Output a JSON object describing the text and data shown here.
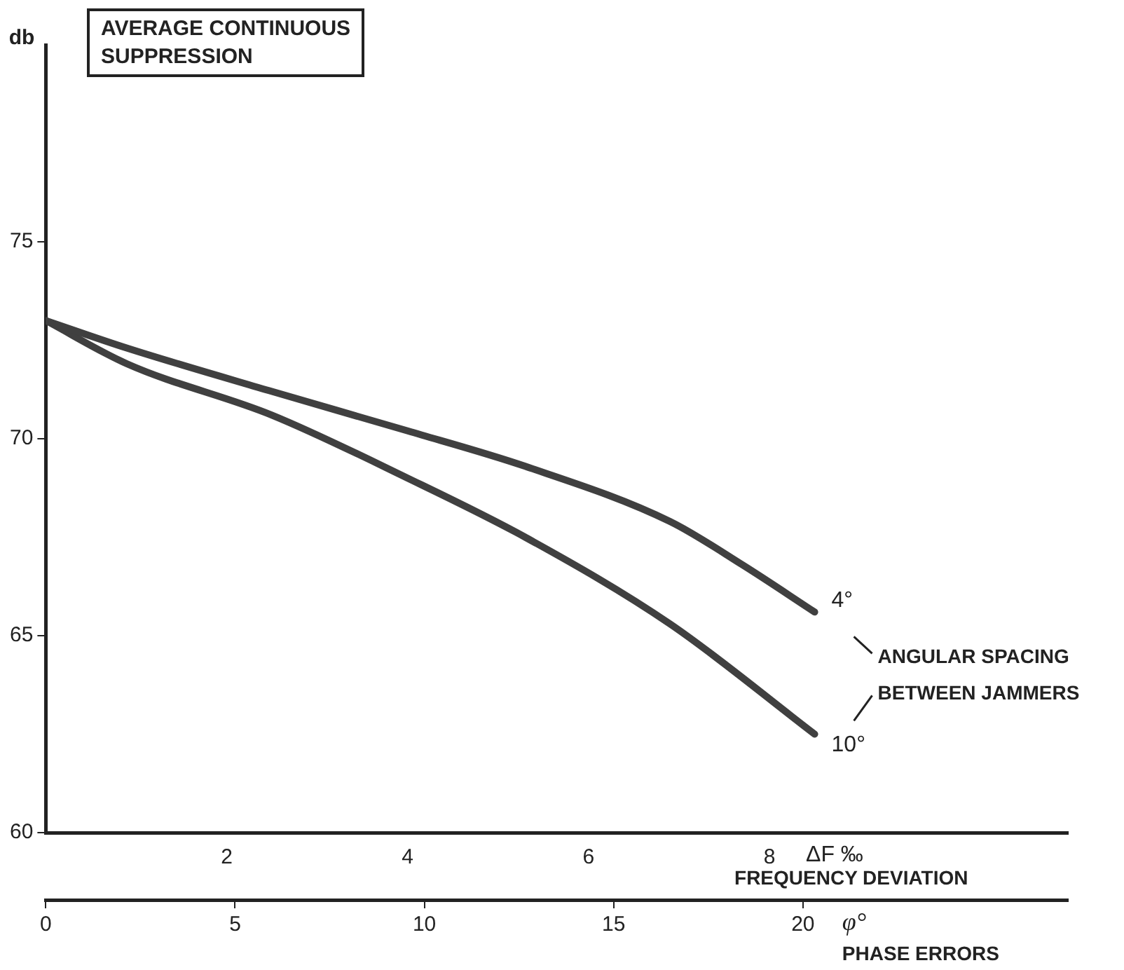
{
  "chart_data": {
    "type": "line",
    "title": "AVERAGE CONTINUOUS\nSUPPRESSION",
    "ylabel": "db",
    "xlabel": "ΔF ‰\nFREQUENCY DEVIATION",
    "x2label": "φ°\nPHASE ERRORS",
    "legend_title": "ANGULAR SPACING\nBETWEEN JAMMERS",
    "series": [
      {
        "name": "4°",
        "color": "#404040",
        "x": [
          0,
          0.9,
          2.5,
          4,
          5.3,
          6.9,
          7.7,
          8.5
        ],
        "values": [
          73,
          72.3,
          71.2,
          70.2,
          69.3,
          67.9,
          66.8,
          65.6
        ]
      },
      {
        "name": "10°",
        "color": "#404040",
        "x": [
          0,
          0.9,
          2.5,
          4,
          5.3,
          6.9,
          8.5
        ],
        "values": [
          73,
          71.9,
          70.6,
          69,
          67.5,
          65.3,
          62.5
        ]
      }
    ],
    "xlim": [
      0,
      11.3
    ],
    "xticks": [
      2,
      4,
      6,
      8
    ],
    "x2lim": [
      0,
      27
    ],
    "x2ticks": [
      0,
      5,
      10,
      15,
      20
    ],
    "ylim": [
      60,
      80
    ],
    "yticks": [
      60,
      65,
      70,
      75
    ],
    "grid": false,
    "legend": false,
    "marker": "none",
    "line_style": "solid"
  }
}
